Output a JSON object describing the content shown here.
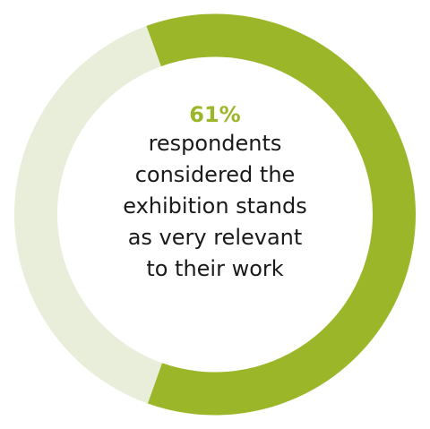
{
  "chart_data": {
    "type": "pie",
    "values": [
      61,
      39
    ],
    "colors": [
      "#9bb628",
      "#e8eed9"
    ],
    "highlight": "61%",
    "caption": [
      "respondents",
      "considered the",
      "exhibition stands",
      "as very relevant",
      "to their work"
    ]
  }
}
